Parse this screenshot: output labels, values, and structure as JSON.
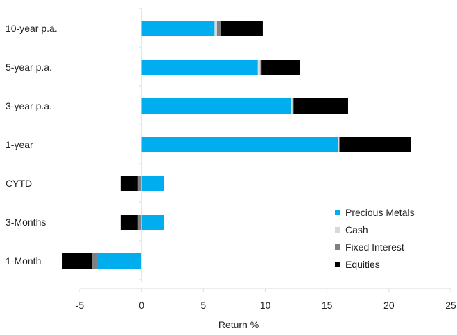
{
  "chart_data": {
    "type": "bar",
    "orientation": "horizontal",
    "stacked": true,
    "title": "",
    "xlabel": "Return %",
    "ylabel": "",
    "xlim": [
      -5,
      25
    ],
    "x_ticks": [
      "-5",
      "0",
      "5",
      "10",
      "15",
      "20",
      "25"
    ],
    "grid": false,
    "legend_position": "bottom-right",
    "categories": [
      "10-year p.a.",
      "5-year p.a.",
      "3-year p.a.",
      "1-year",
      "CYTD",
      "3-Months",
      "1-Month"
    ],
    "series": [
      {
        "name": "Precious Metals",
        "color": "#00aeef",
        "values": [
          5.9,
          9.4,
          12.1,
          15.9,
          1.8,
          1.8,
          -3.6
        ]
      },
      {
        "name": "Cash",
        "color": "#d9d9d9",
        "values": [
          0.2,
          0.2,
          0.1,
          0.1,
          0.0,
          0.0,
          0.0
        ]
      },
      {
        "name": "Fixed Interest",
        "color": "#808080",
        "values": [
          0.3,
          0.1,
          0.1,
          0.0,
          -0.3,
          -0.3,
          -0.4
        ]
      },
      {
        "name": "Equities",
        "color": "#000000",
        "values": [
          3.4,
          3.1,
          4.4,
          5.8,
          -1.4,
          -1.4,
          -2.4
        ]
      }
    ]
  }
}
